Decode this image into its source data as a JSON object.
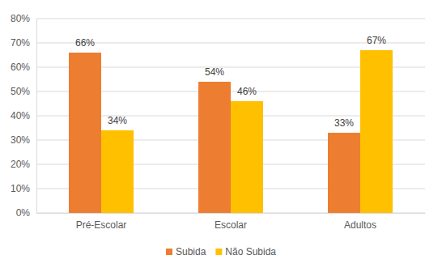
{
  "chart_data": {
    "type": "bar",
    "categories": [
      "Pré-Escolar",
      "Escolar",
      "Adultos"
    ],
    "series": [
      {
        "name": "Subida",
        "color": "#ed7d31",
        "values": [
          66,
          54,
          33
        ],
        "value_labels": [
          "66%",
          "54%",
          "33%"
        ]
      },
      {
        "name": "Não Subida",
        "color": "#ffc000",
        "values": [
          34,
          46,
          67
        ],
        "value_labels": [
          "34%",
          "46%",
          "67%"
        ]
      }
    ],
    "ylim": [
      0,
      80
    ],
    "yticks": [
      {
        "value": 0,
        "label": "0%"
      },
      {
        "value": 10,
        "label": "10%"
      },
      {
        "value": 20,
        "label": "20%"
      },
      {
        "value": 30,
        "label": "30%"
      },
      {
        "value": 40,
        "label": "40%"
      },
      {
        "value": 50,
        "label": "50%"
      },
      {
        "value": 60,
        "label": "60%"
      },
      {
        "value": 70,
        "label": "70%"
      },
      {
        "value": 80,
        "label": "80%"
      }
    ],
    "grid": true,
    "data_labels": true,
    "legend": "bottom"
  }
}
